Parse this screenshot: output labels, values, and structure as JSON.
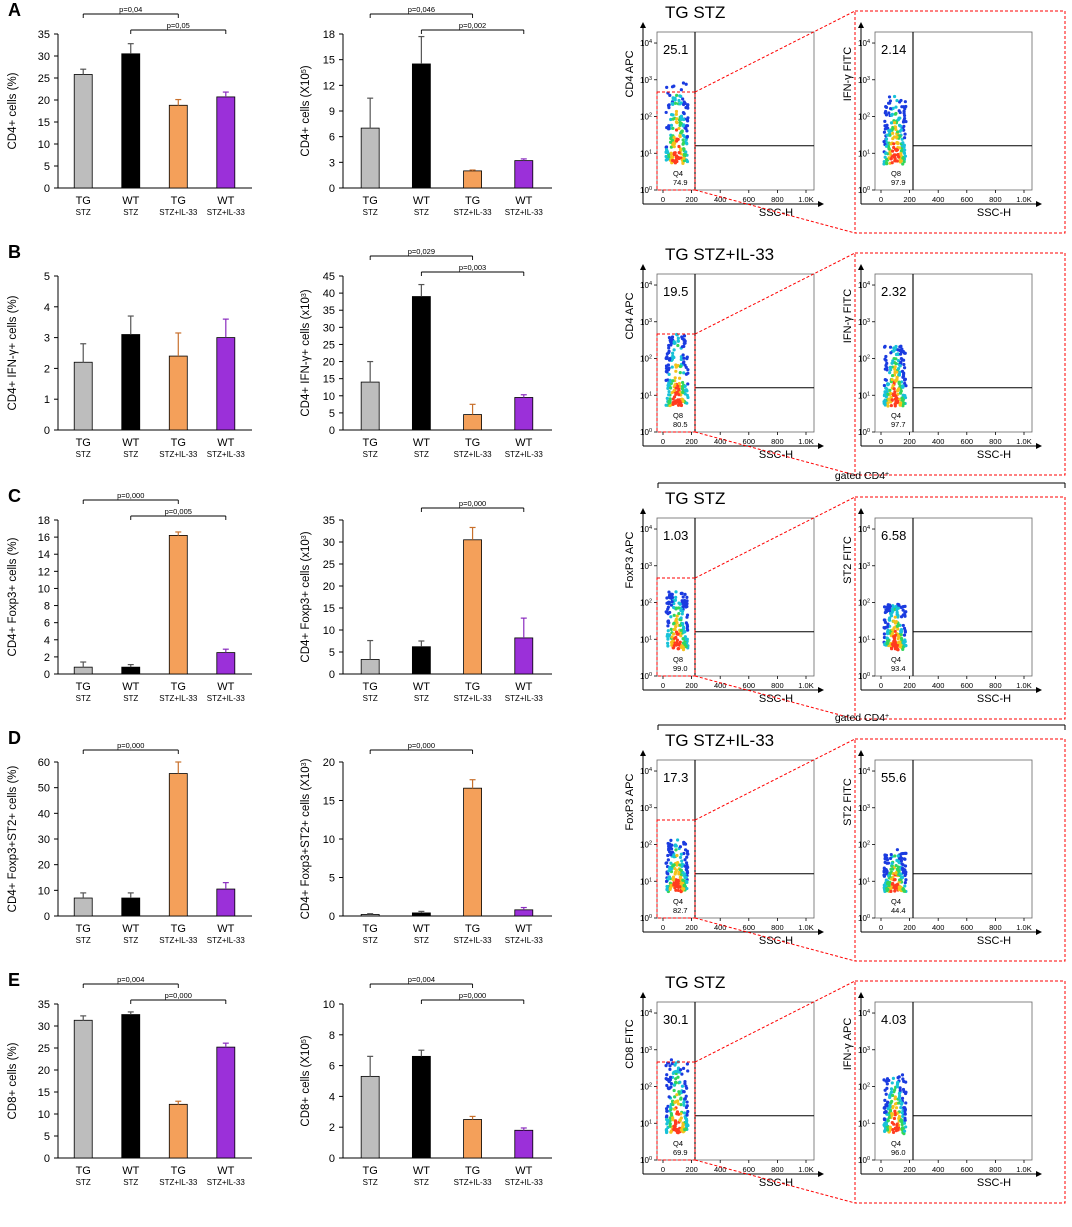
{
  "colors": {
    "TG STZ": "#bdbdbd",
    "WT STZ": "#000000",
    "TG STZ+IL-33": "#f4a05a",
    "WT STZ+IL-33": "#9b30d9",
    "gate": "#ff0000"
  },
  "group_labels": [
    {
      "top": "TG",
      "bottom": "STZ"
    },
    {
      "top": "WT",
      "bottom": "STZ"
    },
    {
      "top": "TG",
      "bottom": "STZ+IL-33"
    },
    {
      "top": "WT",
      "bottom": "STZ+IL-33"
    }
  ],
  "panels": [
    {
      "letter": "A",
      "gated_label": "",
      "charts": [
        {
          "type": "bar",
          "ylabel": "CD4+ cells (%)",
          "ylabel_sup": "",
          "ylabel_tail": "",
          "ylim": [
            0,
            35
          ],
          "yticks": [
            0,
            5,
            10,
            15,
            20,
            25,
            30,
            35
          ],
          "values": [
            25.8,
            30.5,
            18.8,
            20.7
          ],
          "errors": [
            1.2,
            2.3,
            1.3,
            1.1
          ],
          "sig": [
            {
              "from": 0,
              "to": 2,
              "label": "p=0,04"
            },
            {
              "from": 1,
              "to": 3,
              "label": "p=0,05"
            }
          ]
        },
        {
          "type": "bar",
          "ylabel": "CD4+ cells (X10",
          "ylabel_sup": "5",
          "ylabel_tail": ")",
          "ylim": [
            0,
            18
          ],
          "yticks": [
            0,
            3,
            6,
            9,
            12,
            15,
            18
          ],
          "values": [
            7.0,
            14.5,
            2.0,
            3.2
          ],
          "errors": [
            3.5,
            3.2,
            0.1,
            0.2
          ],
          "sig": [
            {
              "from": 0,
              "to": 2,
              "label": "p=0,046"
            },
            {
              "from": 1,
              "to": 3,
              "label": "p=0,002"
            }
          ]
        }
      ],
      "flow_title": "TG STZ",
      "flow": [
        {
          "ylabel": "CD4 APC",
          "big": "25.1",
          "qlabel": "Q4",
          "qvalue": "74.9",
          "xlabel": "SSC-H",
          "xticks": [
            "0",
            "200",
            "400",
            "600",
            "800",
            "1.0K"
          ]
        },
        {
          "ylabel": "IFN-γ FITC",
          "big": "2.14",
          "qlabel": "Q8",
          "qvalue": "97.9",
          "xlabel": "SSC-H",
          "xticks": [
            "0",
            "200",
            "400",
            "600",
            "800",
            "1.0K"
          ]
        }
      ]
    },
    {
      "letter": "B",
      "gated_label": "",
      "charts": [
        {
          "type": "bar",
          "ylabel": "CD4+ IFN-γ+ cells (%)",
          "ylabel_sup": "",
          "ylabel_tail": "",
          "ylim": [
            0,
            5
          ],
          "yticks": [
            0,
            1,
            2,
            3,
            4,
            5
          ],
          "values": [
            2.2,
            3.1,
            2.4,
            3.0
          ],
          "errors": [
            0.6,
            0.6,
            0.75,
            0.6
          ],
          "sig": []
        },
        {
          "type": "bar",
          "ylabel": "CD4+ IFN-γ+ cells (x10",
          "ylabel_sup": "3",
          "ylabel_tail": ")",
          "ylim": [
            0,
            45
          ],
          "yticks": [
            0,
            5,
            10,
            15,
            20,
            25,
            30,
            35,
            40,
            45
          ],
          "values": [
            14.0,
            39.0,
            4.5,
            9.5
          ],
          "errors": [
            6.0,
            3.5,
            3.0,
            0.8
          ],
          "sig": [
            {
              "from": 0,
              "to": 2,
              "label": "p=0,029"
            },
            {
              "from": 1,
              "to": 3,
              "label": "p=0,003"
            }
          ]
        }
      ],
      "flow_title": "TG STZ+IL-33",
      "flow": [
        {
          "ylabel": "CD4 APC",
          "big": "19.5",
          "qlabel": "Q8",
          "qvalue": "80.5",
          "xlabel": "SSC-H",
          "xticks": [
            "0",
            "200",
            "400",
            "600",
            "800",
            "1.0K"
          ]
        },
        {
          "ylabel": "IFN-γ FITC",
          "big": "2.32",
          "qlabel": "Q4",
          "qvalue": "97.7",
          "xlabel": "SSC-H",
          "xticks": [
            "0",
            "200",
            "400",
            "600",
            "800",
            "1.0K"
          ]
        }
      ]
    },
    {
      "letter": "C",
      "gated_label": "gated CD4",
      "charts": [
        {
          "type": "bar",
          "ylabel": "CD4+ Foxp3+ cells (%)",
          "ylabel_sup": "",
          "ylabel_tail": "",
          "ylim": [
            0,
            18
          ],
          "yticks": [
            0,
            2,
            4,
            6,
            8,
            10,
            12,
            14,
            16,
            18
          ],
          "values": [
            0.8,
            0.8,
            16.2,
            2.5
          ],
          "errors": [
            0.6,
            0.3,
            0.4,
            0.4
          ],
          "sig": [
            {
              "from": 0,
              "to": 2,
              "label": "p=0,000"
            },
            {
              "from": 1,
              "to": 3,
              "label": "p=0,005"
            }
          ]
        },
        {
          "type": "bar",
          "ylabel": "CD4+ Foxp3+ cells (x10",
          "ylabel_sup": "3",
          "ylabel_tail": ")",
          "ylim": [
            0,
            35
          ],
          "yticks": [
            0,
            5,
            10,
            15,
            20,
            25,
            30,
            35
          ],
          "values": [
            3.3,
            6.2,
            30.5,
            8.2
          ],
          "errors": [
            4.3,
            1.3,
            2.8,
            4.5
          ],
          "sig": [
            {
              "from": 1,
              "to": 3,
              "label": "p=0,000"
            }
          ]
        }
      ],
      "flow_title": "TG STZ",
      "flow": [
        {
          "ylabel": "FoxP3 APC",
          "big": "1.03",
          "qlabel": "Q8",
          "qvalue": "99.0",
          "xlabel": "SSC-H",
          "xticks": [
            "0",
            "200",
            "400",
            "600",
            "800",
            "1.0K"
          ]
        },
        {
          "ylabel": "ST2 FITC",
          "big": "6.58",
          "qlabel": "Q4",
          "qvalue": "93.4",
          "xlabel": "SSC-H",
          "xticks": [
            "0",
            "200",
            "400",
            "600",
            "800",
            "1.0K"
          ]
        }
      ]
    },
    {
      "letter": "D",
      "gated_label": "gated CD4",
      "charts": [
        {
          "type": "bar",
          "ylabel": "CD4+ Foxp3+ST2+ cells (%)",
          "ylabel_sup": "",
          "ylabel_tail": "",
          "ylim": [
            0,
            60
          ],
          "yticks": [
            0,
            10,
            20,
            30,
            40,
            50,
            60
          ],
          "values": [
            7.0,
            7.0,
            55.5,
            10.5
          ],
          "errors": [
            2.0,
            2.0,
            4.5,
            2.5
          ],
          "sig": [
            {
              "from": 0,
              "to": 2,
              "label": "p=0,000"
            }
          ]
        },
        {
          "type": "bar",
          "ylabel": "CD4+ Foxp3+ST2+ cells (X10",
          "ylabel_sup": "3",
          "ylabel_tail": ")",
          "ylim": [
            0,
            20
          ],
          "yticks": [
            0,
            5,
            10,
            15,
            20
          ],
          "values": [
            0.2,
            0.4,
            16.6,
            0.8
          ],
          "errors": [
            0.1,
            0.2,
            1.1,
            0.3
          ],
          "sig": [
            {
              "from": 0,
              "to": 2,
              "label": "p=0,000"
            }
          ]
        }
      ],
      "flow_title": "TG STZ+IL-33",
      "flow": [
        {
          "ylabel": "FoxP3 APC",
          "big": "17.3",
          "qlabel": "Q4",
          "qvalue": "82.7",
          "xlabel": "SSC-H",
          "xticks": [
            "0",
            "200",
            "400",
            "600",
            "800",
            "1.0K"
          ]
        },
        {
          "ylabel": "ST2 FITC",
          "big": "55.6",
          "qlabel": "Q4",
          "qvalue": "44.4",
          "xlabel": "SSC-H",
          "xticks": [
            "0",
            "200",
            "400",
            "600",
            "800",
            "1.0K"
          ]
        }
      ]
    },
    {
      "letter": "E",
      "gated_label": "",
      "charts": [
        {
          "type": "bar",
          "ylabel": "CD8+ cells (%)",
          "ylabel_sup": "",
          "ylabel_tail": "",
          "ylim": [
            0,
            35
          ],
          "yticks": [
            0,
            5,
            10,
            15,
            20,
            25,
            30,
            35
          ],
          "values": [
            31.3,
            32.6,
            12.2,
            25.2
          ],
          "errors": [
            1.0,
            0.6,
            0.7,
            0.9
          ],
          "sig": [
            {
              "from": 0,
              "to": 2,
              "label": "p=0,004"
            },
            {
              "from": 1,
              "to": 3,
              "label": "p=0,000"
            }
          ]
        },
        {
          "type": "bar",
          "ylabel": "CD8+ cells (X10",
          "ylabel_sup": "5",
          "ylabel_tail": ")",
          "ylim": [
            0,
            10
          ],
          "yticks": [
            0,
            2,
            4,
            6,
            8,
            10
          ],
          "values": [
            5.3,
            6.6,
            2.5,
            1.8
          ],
          "errors": [
            1.3,
            0.4,
            0.2,
            0.15
          ],
          "sig": [
            {
              "from": 0,
              "to": 2,
              "label": "p=0,004"
            },
            {
              "from": 1,
              "to": 3,
              "label": "p=0,000"
            }
          ]
        }
      ],
      "flow_title": "TG STZ",
      "flow": [
        {
          "ylabel": "CD8 FITC",
          "big": "30.1",
          "qlabel": "Q4",
          "qvalue": "69.9",
          "xlabel": "SSC-H",
          "xticks": [
            "0",
            "200",
            "400",
            "600",
            "800",
            "1.0K"
          ]
        },
        {
          "ylabel": "IFN-γ APC",
          "big": "4.03",
          "qlabel": "Q4",
          "qvalue": "96.0",
          "xlabel": "SSC-H",
          "xticks": [
            "0",
            "200",
            "400",
            "600",
            "800",
            "1.0K"
          ]
        }
      ]
    }
  ],
  "chart_data": [
    {
      "type": "bar",
      "panel": "A",
      "title": "",
      "categories": [
        "TG STZ",
        "WT STZ",
        "TG STZ+IL-33",
        "WT STZ+IL-33"
      ],
      "ylabel": "CD4+ cells (%)",
      "values": [
        25.8,
        30.5,
        18.8,
        20.7
      ],
      "ylim": [
        0,
        35
      ]
    },
    {
      "type": "bar",
      "panel": "A",
      "title": "",
      "categories": [
        "TG STZ",
        "WT STZ",
        "TG STZ+IL-33",
        "WT STZ+IL-33"
      ],
      "ylabel": "CD4+ cells (X10^5)",
      "values": [
        7.0,
        14.5,
        2.0,
        3.2
      ],
      "ylim": [
        0,
        18
      ]
    },
    {
      "type": "bar",
      "panel": "B",
      "title": "",
      "categories": [
        "TG STZ",
        "WT STZ",
        "TG STZ+IL-33",
        "WT STZ+IL-33"
      ],
      "ylabel": "CD4+ IFN-γ+ cells (%)",
      "values": [
        2.2,
        3.1,
        2.4,
        3.0
      ],
      "ylim": [
        0,
        5
      ]
    },
    {
      "type": "bar",
      "panel": "B",
      "title": "",
      "categories": [
        "TG STZ",
        "WT STZ",
        "TG STZ+IL-33",
        "WT STZ+IL-33"
      ],
      "ylabel": "CD4+ IFN-γ+ cells (x10^3)",
      "values": [
        14.0,
        39.0,
        4.5,
        9.5
      ],
      "ylim": [
        0,
        45
      ]
    },
    {
      "type": "bar",
      "panel": "C",
      "title": "",
      "categories": [
        "TG STZ",
        "WT STZ",
        "TG STZ+IL-33",
        "WT STZ+IL-33"
      ],
      "ylabel": "CD4+ Foxp3+ cells (%)",
      "values": [
        0.8,
        0.8,
        16.2,
        2.5
      ],
      "ylim": [
        0,
        18
      ]
    },
    {
      "type": "bar",
      "panel": "C",
      "title": "",
      "categories": [
        "TG STZ",
        "WT STZ",
        "TG STZ+IL-33",
        "WT STZ+IL-33"
      ],
      "ylabel": "CD4+ Foxp3+ cells (x10^3)",
      "values": [
        3.3,
        6.2,
        30.5,
        8.2
      ],
      "ylim": [
        0,
        35
      ]
    },
    {
      "type": "bar",
      "panel": "D",
      "title": "",
      "categories": [
        "TG STZ",
        "WT STZ",
        "TG STZ+IL-33",
        "WT STZ+IL-33"
      ],
      "ylabel": "CD4+ Foxp3+ST2+ cells (%)",
      "values": [
        7.0,
        7.0,
        55.5,
        10.5
      ],
      "ylim": [
        0,
        60
      ]
    },
    {
      "type": "bar",
      "panel": "D",
      "title": "",
      "categories": [
        "TG STZ",
        "WT STZ",
        "TG STZ+IL-33",
        "WT STZ+IL-33"
      ],
      "ylabel": "CD4+ Foxp3+ST2+ cells (X10^3)",
      "values": [
        0.2,
        0.4,
        16.6,
        0.8
      ],
      "ylim": [
        0,
        20
      ]
    },
    {
      "type": "bar",
      "panel": "E",
      "title": "",
      "categories": [
        "TG STZ",
        "WT STZ",
        "TG STZ+IL-33",
        "WT STZ+IL-33"
      ],
      "ylabel": "CD8+ cells (%)",
      "values": [
        31.3,
        32.6,
        12.2,
        25.2
      ],
      "ylim": [
        0,
        35
      ]
    },
    {
      "type": "bar",
      "panel": "E",
      "title": "",
      "categories": [
        "TG STZ",
        "WT STZ",
        "TG STZ+IL-33",
        "WT STZ+IL-33"
      ],
      "ylabel": "CD8+ cells (X10^5)",
      "values": [
        5.3,
        6.6,
        2.5,
        1.8
      ],
      "ylim": [
        0,
        10
      ]
    }
  ]
}
